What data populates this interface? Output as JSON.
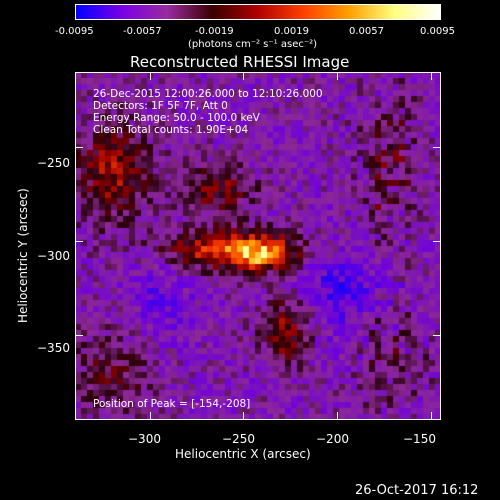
{
  "colorbar": {
    "ticks": [
      "-0.0095",
      "-0.0057",
      "-0.0019",
      "0.0019",
      "0.0057",
      "0.0095"
    ],
    "unit_label": "(photons cm⁻² s⁻¹ asec⁻²)",
    "colormap": [
      "#0000ff",
      "#7a00e6",
      "#9a2aa0",
      "#3a0000",
      "#b00000",
      "#ff4000",
      "#ffa000",
      "#ffff80",
      "#ffffff"
    ]
  },
  "plot": {
    "title": "Reconstructed RHESSI Image",
    "info": [
      "26-Dec-2015 12:00:26.000 to 12:10:26.000",
      "Detectors: 1F 5F 7F, Att 0",
      "Energy Range: 50.0 - 100.0 keV",
      "Clean    Total counts: 1.90E+04"
    ],
    "peak_label": "Position of Peak = [-154,-208]"
  },
  "chart_data": {
    "type": "heatmap",
    "title": "Reconstructed RHESSI Image",
    "xlabel": "Heliocentric X (arcsec)",
    "ylabel": "Heliocentric Y (arcsec)",
    "xlim": [
      -340,
      -145
    ],
    "ylim": [
      -395,
      -210
    ],
    "x_ticks": [
      -300,
      -250,
      -200,
      -150
    ],
    "y_ticks": [
      -250,
      -300,
      -350
    ],
    "x_tick_labels": [
      "−300",
      "−250",
      "−200",
      "−150"
    ],
    "y_tick_labels": [
      "−250",
      "−300",
      "−350"
    ],
    "value_range": [
      -0.0095,
      0.0095
    ],
    "value_unit": "photons cm⁻² s⁻¹ asec⁻²",
    "peak_position": [
      -154,
      -208
    ]
  },
  "timestamp": "26-Oct-2017 16:12"
}
